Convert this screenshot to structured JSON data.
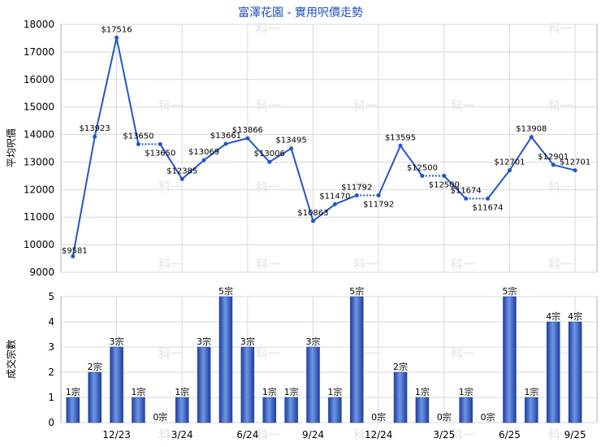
{
  "chart_data": [
    {
      "type": "line",
      "title": "富澤花園 - 實用呎價走勢",
      "ylabel": "平均呎價",
      "ylim": [
        9000,
        18000
      ],
      "yticks": [
        9000,
        10000,
        11000,
        12000,
        13000,
        14000,
        15000,
        16000,
        17000,
        18000
      ],
      "grid": true,
      "color": "#2255cc",
      "points": [
        {
          "label": "$9581",
          "value": 9581
        },
        {
          "label": "$13923",
          "value": 13923
        },
        {
          "label": "$17516",
          "value": 17516
        },
        {
          "label": "$13650",
          "value": 13650
        },
        {
          "label": "$13650",
          "value": 13650,
          "dotted_from_prev": true
        },
        {
          "label": "$12385",
          "value": 12385
        },
        {
          "label": "$13069",
          "value": 13069
        },
        {
          "label": "$13661",
          "value": 13661
        },
        {
          "label": "$13866",
          "value": 13866
        },
        {
          "label": "$13006",
          "value": 13006
        },
        {
          "label": "$13495",
          "value": 13495
        },
        {
          "label": "$10863",
          "value": 10863
        },
        {
          "label": "$11470",
          "value": 11470
        },
        {
          "label": "$11792",
          "value": 11792
        },
        {
          "label": "$11792",
          "value": 11792,
          "dotted_from_prev": true
        },
        {
          "label": "$13595",
          "value": 13595
        },
        {
          "label": "$12500",
          "value": 12500
        },
        {
          "label": "$12500",
          "value": 12500,
          "dotted_from_prev": true
        },
        {
          "label": "$11674",
          "value": 11674
        },
        {
          "label": "$11674",
          "value": 11674,
          "dotted_from_prev": true
        },
        {
          "label": "$12701",
          "value": 12701
        },
        {
          "label": "$13908",
          "value": 13908
        },
        {
          "label": "$12901",
          "value": 12901
        },
        {
          "label": "$12701",
          "value": 12701
        }
      ]
    },
    {
      "type": "bar",
      "ylabel": "成交宗數",
      "ylim": [
        0,
        5
      ],
      "yticks": [
        0,
        1,
        2,
        3,
        4,
        5
      ],
      "grid": true,
      "color": "#2a56c4",
      "unit": "宗",
      "values": [
        1,
        2,
        3,
        1,
        0,
        1,
        3,
        5,
        3,
        1,
        1,
        3,
        1,
        5,
        0,
        2,
        1,
        0,
        1,
        0,
        5,
        1,
        4,
        4
      ],
      "x_tick_labels": [
        {
          "index": 2,
          "label": "12/23"
        },
        {
          "index": 5,
          "label": "3/24"
        },
        {
          "index": 8,
          "label": "6/24"
        },
        {
          "index": 11,
          "label": "9/24"
        },
        {
          "index": 14,
          "label": "12/24"
        },
        {
          "index": 17,
          "label": "3/25"
        },
        {
          "index": 20,
          "label": "6/25"
        },
        {
          "index": 23,
          "label": "9/25"
        }
      ]
    }
  ],
  "watermark": "科一"
}
